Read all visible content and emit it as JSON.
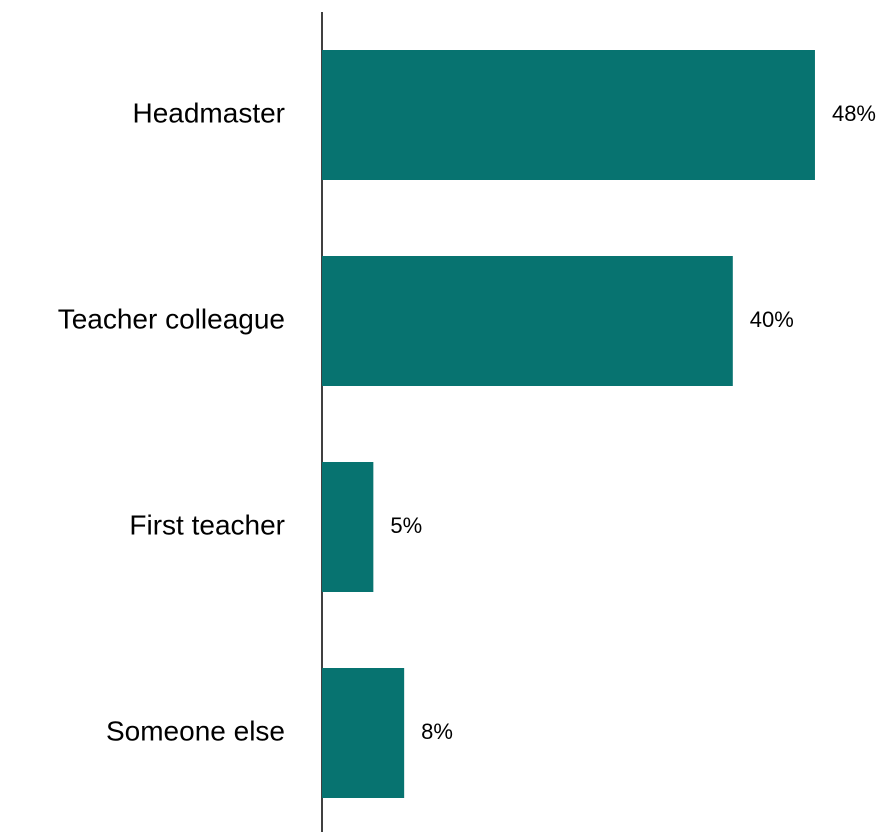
{
  "chart_data": {
    "type": "bar",
    "orientation": "horizontal",
    "categories": [
      "Headmaster",
      "Teacher colleague",
      "First teacher",
      "Someone else"
    ],
    "values": [
      48,
      40,
      5,
      8
    ],
    "value_labels": [
      "48%",
      "40%",
      "5%",
      "8%"
    ],
    "color": "#077370"
  }
}
